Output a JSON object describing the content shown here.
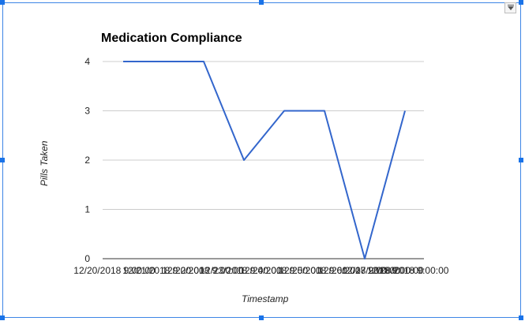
{
  "chart_data": {
    "type": "line",
    "title": "Medication Compliance",
    "xlabel": "Timestamp",
    "ylabel": "Pills Taken",
    "ylim": [
      0,
      4
    ],
    "yticks": [
      "0",
      "1",
      "2",
      "3",
      "4"
    ],
    "grid": true,
    "legend": "none",
    "x_tick_labels": [
      "12/20/2018 9:00:00",
      "12/21/2018 9:00:00",
      "12/22/2018 9:00:00",
      "12/23/2018 9:00:00",
      "12/24/2018 9:00:00",
      "12/25/2018 9:00:00",
      "12/26/2018 9:00:00",
      "12/27/2018 9:00:00",
      "12/28/2018 9:00:00"
    ],
    "series": [
      {
        "values": [
          4,
          4,
          4,
          2,
          3,
          3,
          0,
          3
        ],
        "color": "#3366cc"
      }
    ]
  },
  "ui": {
    "menu_icon": "dropdown-arrow-icon",
    "selection_color": "#1a73e8"
  }
}
